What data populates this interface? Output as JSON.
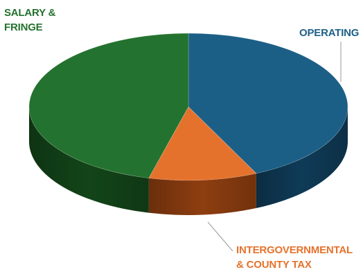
{
  "chart_data": {
    "type": "pie",
    "style": "3d",
    "title": "",
    "start_angle_deg": 0,
    "direction": "clockwise",
    "slices": [
      {
        "label": "OPERATING",
        "value": 43,
        "color": "#1c5f86",
        "side_color": "#0f3b57"
      },
      {
        "label": "INTERGOVERNMENTAL\n& COUNTY TAX",
        "value": 11,
        "color": "#e5722c",
        "side_color": "#8e3e10"
      },
      {
        "label": "SALARY &\nFRINGE",
        "value": 46,
        "color": "#24722f",
        "side_color": "#134519"
      }
    ],
    "legend": "none"
  }
}
